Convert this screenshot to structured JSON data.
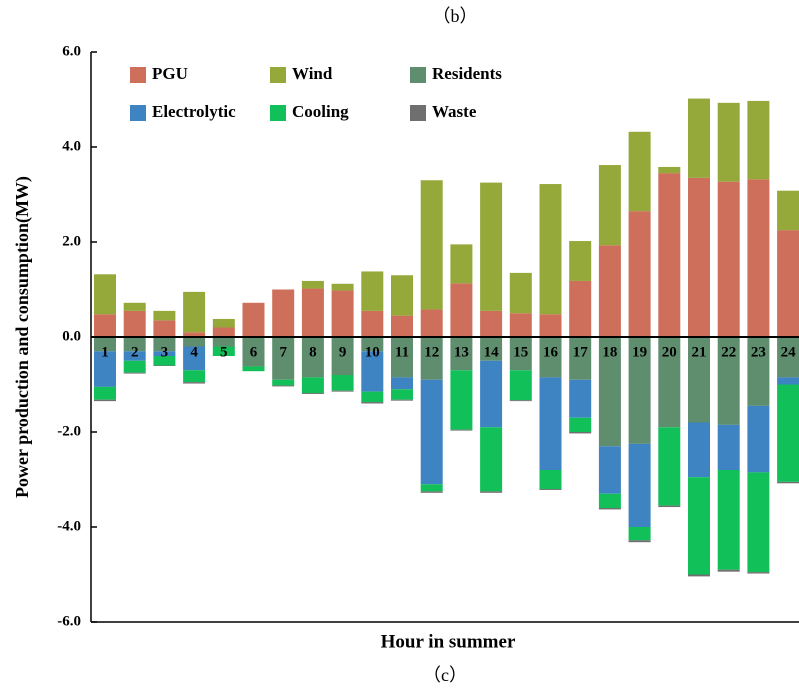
{
  "caption_top": "（b）",
  "caption_bottom": "（c）",
  "chart_data": {
    "type": "stacked_bar",
    "y_label": "Power production and consumption(MW)",
    "x_label": "Hour in summer",
    "categories": [
      "1",
      "2",
      "3",
      "4",
      "5",
      "6",
      "7",
      "8",
      "9",
      "10",
      "11",
      "12",
      "13",
      "14",
      "15",
      "16",
      "17",
      "18",
      "19",
      "20",
      "21",
      "22",
      "23",
      "24"
    ],
    "ylim": [
      -6,
      6
    ],
    "yticks": [
      {
        "value": -6,
        "label": "-6.0"
      },
      {
        "value": -4,
        "label": "-4.0"
      },
      {
        "value": -2,
        "label": "-2.0"
      },
      {
        "value": 0,
        "label": "0.0"
      },
      {
        "value": 2,
        "label": "2.0"
      },
      {
        "value": 4,
        "label": "4.0"
      },
      {
        "value": 6,
        "label": "6.0"
      }
    ],
    "series": [
      {
        "name": "PGU",
        "color": "#cd6f5a",
        "values": [
          0.48,
          0.55,
          0.35,
          0.1,
          0.2,
          0.72,
          1.0,
          1.02,
          0.98,
          0.55,
          0.45,
          0.58,
          1.13,
          0.55,
          0.5,
          0.48,
          1.18,
          1.93,
          2.65,
          3.45,
          3.35,
          3.27,
          3.32,
          2.25
        ]
      },
      {
        "name": "Wind",
        "color": "#95a83a",
        "values": [
          0.84,
          0.17,
          0.2,
          0.85,
          0.18,
          0,
          0,
          0.16,
          0.14,
          0.83,
          0.85,
          2.72,
          0.82,
          2.7,
          0.85,
          2.74,
          0.84,
          1.69,
          1.67,
          0.13,
          1.67,
          1.66,
          1.65,
          0.83
        ]
      },
      {
        "name": "Residents",
        "color": "#5f8e6f",
        "values": [
          -0.3,
          -0.3,
          -0.3,
          -0.2,
          -0.2,
          -0.62,
          -0.9,
          -0.85,
          -0.8,
          -0.3,
          -0.85,
          -0.9,
          -0.7,
          -0.5,
          -0.7,
          -0.85,
          -0.9,
          -2.3,
          -2.25,
          -1.9,
          -1.8,
          -1.85,
          -1.45,
          -0.85
        ]
      },
      {
        "name": "Electrolytic",
        "color": "#3e83c2",
        "values": [
          -0.75,
          -0.2,
          -0.1,
          -0.5,
          0,
          0,
          0,
          0,
          0,
          -0.85,
          -0.25,
          -2.2,
          0,
          -1.4,
          0,
          -1.95,
          -0.8,
          -1.0,
          -1.75,
          0,
          -1.15,
          -0.95,
          -1.4,
          -0.15
        ]
      },
      {
        "name": "Cooling",
        "color": "#12c05a",
        "values": [
          -0.27,
          -0.25,
          -0.2,
          -0.25,
          -0.2,
          -0.1,
          -0.12,
          -0.33,
          -0.33,
          -0.22,
          -0.22,
          -0.15,
          -1.25,
          -1.35,
          -0.63,
          -0.4,
          -0.3,
          -0.3,
          -0.28,
          -1.65,
          -2.05,
          -2.1,
          -2.1,
          -2.05
        ]
      },
      {
        "name": "Waste",
        "color": "#6f6f6f",
        "values": [
          -0.03,
          -0.02,
          -0.01,
          -0.03,
          0,
          0,
          -0.02,
          -0.02,
          -0.02,
          -0.03,
          -0.02,
          -0.03,
          -0.02,
          -0.03,
          -0.02,
          -0.02,
          -0.03,
          -0.03,
          -0.04,
          -0.03,
          -0.04,
          -0.04,
          -0.03,
          -0.03
        ]
      }
    ]
  }
}
